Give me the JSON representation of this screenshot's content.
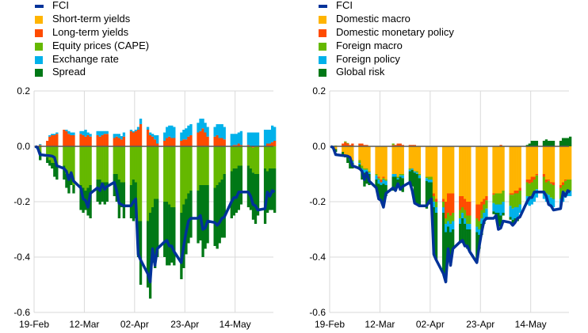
{
  "chart_data": [
    {
      "type": "bar",
      "subtype": "stacked bar with line",
      "title": "",
      "xlabel": "",
      "ylabel": "",
      "ylim": [
        -0.6,
        0.2
      ],
      "y_ticks": [
        "0.2",
        "0.0",
        "-0.2",
        "-0.4",
        "-0.6"
      ],
      "y_tick_values": [
        0.2,
        0.0,
        -0.2,
        -0.4,
        -0.6
      ],
      "x_ticks": [
        "19-Feb",
        "12-Mar",
        "02-Apr",
        "23-Apr",
        "14-May"
      ],
      "x_tick_day_offsets": [
        0,
        21,
        42,
        63,
        84
      ],
      "x_range_days": [
        0,
        100
      ],
      "grid": true,
      "legend_placement": "top-left",
      "line_series": {
        "name": "FCI",
        "color": "#003299"
      },
      "series": [
        {
          "name": "Short-term yields",
          "color": "#FFB400",
          "values": [
            0,
            0,
            0,
            0,
            0,
            0,
            0,
            0,
            0,
            0,
            0,
            0,
            0,
            0,
            0,
            0,
            0,
            0,
            0,
            0,
            0,
            0,
            0,
            0,
            0,
            0,
            0,
            0,
            0,
            0,
            0,
            0,
            0,
            0,
            0,
            0,
            0,
            0,
            0,
            0,
            0,
            0,
            0,
            0,
            0,
            0,
            0,
            0,
            0,
            0,
            0,
            0,
            0,
            0,
            0,
            0,
            0,
            0,
            0,
            0,
            0,
            0,
            0,
            0,
            0,
            0,
            0,
            0,
            0,
            0,
            0,
            0,
            0
          ]
        },
        {
          "name": "Long-term yields",
          "color": "#FF4B00",
          "values": [
            0,
            0,
            0.005,
            0.02,
            0.035,
            0.04,
            0.04,
            0.045,
            0.06,
            0.055,
            0.045,
            0.04,
            0.04,
            0.045,
            0.04,
            0.035,
            0.04,
            0.035,
            0.04,
            0.035,
            0.04,
            0.045,
            0.045,
            0.03,
            0.035,
            0.03,
            0.025,
            0.035,
            0.055,
            0.05,
            0.055,
            0.06,
            0.08,
            0.06,
            0.04,
            0.035,
            0.025,
            0.01,
            0.02,
            0.03,
            0.035,
            0.03,
            0.03,
            0.02,
            0.025,
            0.025,
            0.035,
            0.04,
            0.05,
            0.055,
            0.065,
            0.05,
            0.035,
            0.035,
            0.04,
            0.03,
            0.03,
            0.025,
            0,
            0.005,
            0.005,
            0.01,
            0.005,
            0.005,
            0,
            -0.005,
            0,
            0,
            0,
            0.01,
            0.01,
            0.015,
            0.02
          ]
        },
        {
          "name": "Equity prices (CAPE)",
          "color": "#65B800",
          "values": [
            0,
            -0.005,
            -0.02,
            -0.04,
            -0.05,
            -0.06,
            -0.06,
            -0.07,
            -0.07,
            -0.1,
            -0.1,
            -0.11,
            -0.14,
            -0.14,
            -0.15,
            -0.16,
            -0.15,
            -0.14,
            -0.12,
            -0.12,
            -0.13,
            -0.13,
            -0.13,
            -0.1,
            -0.1,
            -0.12,
            -0.13,
            -0.13,
            -0.14,
            -0.12,
            -0.13,
            -0.27,
            -0.27,
            -0.27,
            -0.24,
            -0.22,
            -0.19,
            -0.19,
            -0.2,
            -0.2,
            -0.21,
            -0.22,
            -0.22,
            -0.24,
            -0.21,
            -0.19,
            -0.17,
            -0.16,
            -0.16,
            -0.14,
            -0.14,
            -0.14,
            -0.14,
            -0.15,
            -0.14,
            -0.13,
            -0.12,
            -0.1,
            -0.09,
            -0.08,
            -0.08,
            -0.07,
            -0.07,
            -0.07,
            -0.08,
            -0.09,
            -0.1,
            -0.1,
            -0.08,
            -0.09,
            -0.08,
            -0.08,
            -0.08
          ]
        },
        {
          "name": "Exchange rate",
          "color": "#00B1EA",
          "values": [
            0,
            0,
            0.003,
            0,
            0.005,
            0.005,
            0.005,
            0.005,
            0,
            0.005,
            0.01,
            0.01,
            0.01,
            0.01,
            0.015,
            0.025,
            0.01,
            0.01,
            0.015,
            0.02,
            0.015,
            0.01,
            0.01,
            0.015,
            0.01,
            0.015,
            0.012,
            0.015,
            0.005,
            0.005,
            0.005,
            0.01,
            0.02,
            0.01,
            0.01,
            0.01,
            0.015,
            0.03,
            0.03,
            0.04,
            0.04,
            0.045,
            0.04,
            0.03,
            0.035,
            0.04,
            0.04,
            0.04,
            0.035,
            0.045,
            0.035,
            0.035,
            0.035,
            0.035,
            0.04,
            0.05,
            0.05,
            0.045,
            0.045,
            0.04,
            0.04,
            0.04,
            0.05,
            0.045,
            0.05,
            0.05,
            0.05,
            0.05,
            0.06,
            0.05,
            0.05,
            0.06,
            0.05
          ]
        },
        {
          "name": "Spread",
          "color": "#007816",
          "values": [
            0,
            -0.005,
            -0.03,
            -0.02,
            -0.02,
            -0.02,
            -0.05,
            -0.05,
            -0.05,
            -0.05,
            -0.07,
            -0.03,
            -0.03,
            -0.09,
            -0.09,
            -0.07,
            -0.1,
            -0.12,
            -0.08,
            -0.09,
            -0.07,
            -0.08,
            -0.07,
            -0.08,
            -0.1,
            -0.14,
            -0.09,
            -0.13,
            -0.12,
            -0.15,
            -0.13,
            -0.13,
            -0.23,
            -0.24,
            -0.31,
            -0.2,
            -0.25,
            -0.21,
            -0.2,
            -0.23,
            -0.22,
            -0.2,
            -0.21,
            -0.24,
            -0.23,
            -0.2,
            -0.18,
            -0.17,
            -0.19,
            -0.2,
            -0.26,
            -0.23,
            -0.21,
            -0.21,
            -0.23,
            -0.22,
            -0.21,
            -0.23,
            -0.17,
            -0.17,
            -0.16,
            -0.16,
            -0.14,
            -0.15,
            -0.15,
            -0.17,
            -0.18,
            -0.15,
            -0.2,
            -0.15,
            -0.15,
            -0.15,
            -0.16
          ]
        }
      ]
    },
    {
      "type": "bar",
      "subtype": "stacked bar with line",
      "title": "",
      "xlabel": "",
      "ylabel": "",
      "ylim": [
        -0.6,
        0.2
      ],
      "y_ticks": [
        "0.2",
        "0.0",
        "-0.2",
        "-0.4",
        "-0.6"
      ],
      "y_tick_values": [
        0.2,
        0.0,
        -0.2,
        -0.4,
        -0.6
      ],
      "x_ticks": [
        "19-Feb",
        "12-Mar",
        "02-Apr",
        "23-Apr",
        "14-May"
      ],
      "x_tick_day_offsets": [
        0,
        21,
        42,
        63,
        84
      ],
      "x_range_days": [
        0,
        100
      ],
      "grid": true,
      "legend_placement": "top-left",
      "line_series": {
        "name": "FCI",
        "color": "#003299"
      },
      "series": [
        {
          "name": "Domestic macro",
          "color": "#FFB400",
          "values": [
            0,
            -0.005,
            -0.01,
            -0.02,
            -0.03,
            -0.04,
            -0.04,
            -0.05,
            -0.05,
            -0.07,
            -0.08,
            -0.08,
            -0.09,
            -0.1,
            -0.11,
            -0.12,
            -0.11,
            -0.12,
            -0.1,
            -0.1,
            -0.11,
            -0.1,
            -0.1,
            -0.08,
            -0.08,
            -0.09,
            -0.09,
            -0.1,
            -0.11,
            -0.11,
            -0.11,
            -0.17,
            -0.19,
            -0.19,
            -0.2,
            -0.17,
            -0.17,
            -0.17,
            -0.18,
            -0.18,
            -0.19,
            -0.2,
            -0.2,
            -0.21,
            -0.21,
            -0.2,
            -0.19,
            -0.18,
            -0.17,
            -0.17,
            -0.17,
            -0.17,
            -0.16,
            -0.17,
            -0.17,
            -0.16,
            -0.16,
            -0.15,
            -0.12,
            -0.12,
            -0.11,
            -0.11,
            -0.1,
            -0.1,
            -0.12,
            -0.12,
            -0.13,
            -0.13,
            -0.14,
            -0.13,
            -0.12,
            -0.12,
            -0.12
          ]
        },
        {
          "name": "Domestic monetary policy",
          "color": "#FF4B00",
          "values": [
            0,
            0,
            0,
            0.01,
            0.015,
            0.01,
            0.005,
            0.01,
            0.01,
            0.01,
            0.005,
            0.005,
            0,
            0,
            -0.005,
            -0.01,
            -0.005,
            0,
            0.005,
            0.005,
            0.01,
            0.01,
            0.005,
            0.005,
            0.005,
            0.005,
            0,
            0,
            0,
            0,
            0,
            -0.01,
            -0.01,
            -0.01,
            -0.06,
            -0.07,
            -0.08,
            -0.07,
            -0.05,
            -0.04,
            -0.04,
            -0.05,
            -0.05,
            -0.05,
            -0.06,
            -0.03,
            -0.02,
            -0.015,
            -0.005,
            0,
            0,
            0.005,
            0,
            -0.005,
            -0.005,
            -0.01,
            -0.01,
            -0.01,
            -0.01,
            -0.015,
            -0.02,
            -0.01,
            -0.005,
            -0.01,
            -0.01,
            -0.005,
            -0.005,
            -0.01,
            -0.01,
            -0.01,
            -0.005,
            0,
            0
          ]
        },
        {
          "name": "Foreign macro",
          "color": "#65B800",
          "values": [
            0,
            0.002,
            0.003,
            0,
            0.003,
            0.002,
            -0.005,
            -0.005,
            -0.01,
            -0.01,
            -0.005,
            -0.005,
            -0.005,
            -0.005,
            -0.005,
            0,
            -0.005,
            -0.005,
            0.005,
            0,
            -0.005,
            -0.005,
            -0.005,
            -0.005,
            0,
            0,
            -0.005,
            -0.005,
            -0.005,
            -0.01,
            -0.01,
            -0.02,
            -0.02,
            -0.02,
            -0.02,
            -0.03,
            -0.03,
            -0.03,
            -0.03,
            -0.02,
            -0.03,
            -0.03,
            -0.03,
            -0.03,
            -0.03,
            -0.03,
            -0.03,
            -0.03,
            -0.03,
            -0.04,
            -0.04,
            -0.04,
            -0.04,
            -0.04,
            -0.05,
            -0.05,
            -0.05,
            -0.05,
            -0.05,
            -0.05,
            -0.05,
            -0.05,
            -0.05,
            -0.05,
            -0.04,
            -0.05,
            -0.05,
            -0.05,
            -0.04,
            -0.04,
            -0.04,
            -0.04,
            -0.04
          ]
        },
        {
          "name": "Foreign policy",
          "color": "#00B1EA",
          "values": [
            0,
            0,
            0,
            0,
            0,
            0,
            -0.005,
            -0.005,
            -0.005,
            -0.01,
            -0.01,
            -0.01,
            -0.005,
            -0.015,
            -0.015,
            -0.01,
            -0.015,
            -0.015,
            -0.01,
            -0.01,
            -0.005,
            -0.005,
            -0.01,
            -0.005,
            -0.005,
            -0.005,
            -0.005,
            -0.01,
            -0.01,
            -0.01,
            -0.01,
            -0.02,
            -0.02,
            -0.02,
            -0.03,
            -0.02,
            -0.03,
            -0.03,
            -0.02,
            -0.02,
            -0.02,
            -0.02,
            -0.02,
            -0.02,
            -0.02,
            -0.02,
            -0.03,
            -0.03,
            -0.03,
            -0.03,
            -0.03,
            -0.04,
            -0.04,
            -0.04,
            -0.04,
            -0.04,
            -0.04,
            -0.03,
            -0.03,
            -0.03,
            -0.03,
            -0.03,
            -0.03,
            -0.03,
            -0.03,
            -0.03,
            -0.03,
            -0.03,
            -0.03,
            -0.02,
            -0.02,
            -0.02,
            -0.02
          ]
        },
        {
          "name": "Global risk",
          "color": "#007816",
          "values": [
            0,
            0,
            -0.01,
            -0.01,
            -0.01,
            -0.02,
            -0.03,
            -0.02,
            -0.02,
            -0.03,
            -0.05,
            -0.04,
            -0.04,
            -0.03,
            -0.05,
            -0.06,
            -0.07,
            -0.04,
            -0.05,
            -0.05,
            -0.03,
            -0.05,
            -0.05,
            -0.04,
            -0.06,
            -0.11,
            -0.11,
            -0.1,
            -0.1,
            -0.08,
            -0.07,
            -0.17,
            -0.17,
            -0.22,
            -0.18,
            -0.08,
            -0.12,
            -0.07,
            -0.07,
            -0.08,
            -0.08,
            -0.07,
            -0.08,
            -0.11,
            -0.05,
            -0.04,
            -0.01,
            -0.01,
            -0.01,
            -0.01,
            -0.05,
            -0.04,
            -0.01,
            -0.01,
            -0.02,
            -0.01,
            -0.01,
            0,
            0.005,
            0.01,
            0.02,
            0.02,
            0.02,
            0.02,
            0.025,
            0.02,
            0.02,
            0.02,
            0.02,
            0.03,
            0.03,
            0.03,
            0.035
          ]
        }
      ]
    }
  ],
  "fci_values": [
    0,
    -0.005,
    -0.03,
    -0.033,
    -0.034,
    -0.035,
    -0.04,
    -0.07,
    -0.08,
    -0.09,
    -0.12,
    -0.095,
    -0.125,
    -0.15,
    -0.19,
    -0.195,
    -0.22,
    -0.17,
    -0.15,
    -0.16,
    -0.135,
    -0.155,
    -0.145,
    -0.13,
    -0.16,
    -0.205,
    -0.21,
    -0.215,
    -0.215,
    -0.2,
    -0.19,
    -0.39,
    -0.41,
    -0.46,
    -0.49,
    -0.37,
    -0.43,
    -0.37,
    -0.345,
    -0.34,
    -0.36,
    -0.36,
    -0.38,
    -0.42,
    -0.36,
    -0.31,
    -0.27,
    -0.26,
    -0.26,
    -0.25,
    -0.3,
    -0.295,
    -0.27,
    -0.275,
    -0.285,
    -0.275,
    -0.26,
    -0.255,
    -0.2,
    -0.185,
    -0.185,
    -0.165,
    -0.165,
    -0.165,
    -0.18,
    -0.21,
    -0.215,
    -0.23,
    -0.225,
    -0.165,
    -0.18,
    -0.16,
    -0.165
  ],
  "legends": [
    {
      "items": [
        "FCI",
        "Short-term yields",
        "Long-term yields",
        "Equity prices (CAPE)",
        "Exchange rate",
        "Spread"
      ]
    },
    {
      "items": [
        "FCI",
        "Domestic macro",
        "Domestic monetary policy",
        "Foreign macro",
        "Foreign policy",
        "Global risk"
      ]
    }
  ]
}
